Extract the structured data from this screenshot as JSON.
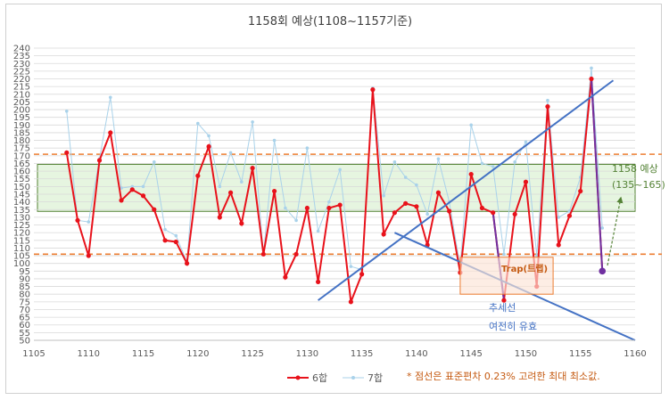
{
  "chart_data": {
    "type": "line",
    "title": "1158회 예상(1108~1157기준)",
    "xlabel": "",
    "ylabel": "",
    "xlim": [
      1105,
      1160
    ],
    "ylim": [
      50,
      240
    ],
    "x_ticks": [
      1105,
      1110,
      1115,
      1120,
      1125,
      1130,
      1135,
      1140,
      1145,
      1150,
      1155,
      1160
    ],
    "y_ticks": [
      50,
      55,
      60,
      65,
      70,
      75,
      80,
      85,
      90,
      95,
      100,
      105,
      110,
      115,
      120,
      125,
      130,
      135,
      140,
      145,
      150,
      155,
      160,
      165,
      170,
      175,
      180,
      185,
      190,
      195,
      200,
      205,
      210,
      215,
      220,
      225,
      230,
      235,
      240
    ],
    "grid": "horizontal",
    "legend_position": "bottom",
    "x": [
      1108,
      1109,
      1110,
      1111,
      1112,
      1113,
      1114,
      1115,
      1116,
      1117,
      1118,
      1119,
      1120,
      1121,
      1122,
      1123,
      1124,
      1125,
      1126,
      1127,
      1128,
      1129,
      1130,
      1131,
      1132,
      1133,
      1134,
      1135,
      1136,
      1137,
      1138,
      1139,
      1140,
      1141,
      1142,
      1143,
      1144,
      1145,
      1146,
      1147,
      1148,
      1149,
      1150,
      1151,
      1152,
      1153,
      1154,
      1155,
      1156,
      1157
    ],
    "series": [
      {
        "name": "6합",
        "color": "#e8121b",
        "values": [
          172,
          128,
          105,
          167,
          185,
          141,
          148,
          144,
          135,
          115,
          114,
          100,
          157,
          176,
          130,
          146,
          126,
          162,
          106,
          147,
          91,
          106,
          136,
          88,
          136,
          138,
          75,
          93,
          213,
          119,
          133,
          139,
          137,
          112,
          146,
          134,
          94,
          158,
          136,
          133,
          76,
          132,
          153,
          85,
          202,
          112,
          131,
          147,
          220,
          95
        ]
      },
      {
        "name": "7합",
        "color": "#a9d2ea",
        "values": [
          199,
          128,
          127,
          168,
          208,
          149,
          150,
          150,
          166,
          122,
          118,
          101,
          191,
          183,
          150,
          172,
          153,
          192,
          106,
          180,
          136,
          128,
          175,
          121,
          140,
          161,
          98,
          96,
          214,
          144,
          166,
          156,
          151,
          132,
          168,
          140,
          98,
          190,
          165,
          163,
          106,
          166,
          179,
          105,
          206,
          130,
          134,
          156,
          227,
          123
        ]
      }
    ],
    "reference_lines": {
      "upper": 171,
      "lower": 106
    },
    "prediction_band": {
      "from": 135,
      "to": 165,
      "color": "#e6f5e0"
    },
    "annotations": {
      "prediction_line1": "1158 예상",
      "prediction_line2": "(135~165)",
      "trap": "Trap(트랩)",
      "trend_line1": "추세선",
      "trend_line2": "여전히 유효",
      "footnote": "* 점선은 표준편차 0.23% 고려한 최대 최소값."
    },
    "trend_lines": {
      "upward": {
        "from": [
          1131,
          76
        ],
        "to": [
          1158,
          219
        ]
      },
      "downward": {
        "from": [
          1138,
          120
        ],
        "to": [
          1160,
          50
        ]
      }
    },
    "trap_box": {
      "x_from": 1144,
      "x_to": 1152.5,
      "y_from": 80,
      "y_to": 104
    },
    "purple_segments": [
      [
        1147,
        1148
      ],
      [
        1156,
        1157
      ]
    ],
    "colors": {
      "accent_orange": "#ed7d31",
      "trend_blue": "#4472c4",
      "band_green": "#548235",
      "purple": "#7030a0",
      "axis_text": "#595959"
    }
  }
}
